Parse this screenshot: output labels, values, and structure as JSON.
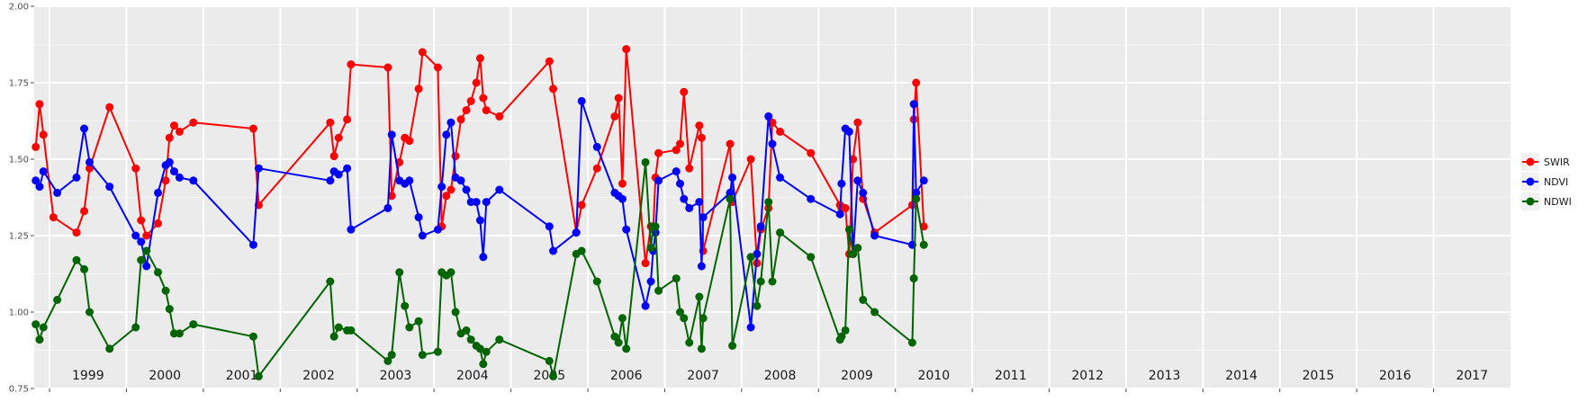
{
  "chart_data": {
    "type": "line",
    "title": "",
    "xlabel": "",
    "ylabel": "",
    "ylim": [
      0.75,
      2.0
    ],
    "y_ticks": [
      "0.75",
      "1.00",
      "1.25",
      "1.50",
      "1.75",
      "2.00"
    ],
    "x_range": [
      1998.8,
      2018.0
    ],
    "grid": true,
    "background": "#ebebeb",
    "legend_position": "right",
    "year_labels": [
      "1999",
      "2000",
      "2001",
      "2002",
      "2003",
      "2004",
      "2005",
      "2006",
      "2007",
      "2008",
      "2009",
      "2010",
      "2011",
      "2012",
      "2013",
      "2014",
      "2015",
      "2016",
      "2017"
    ],
    "series": [
      {
        "name": "SWIR",
        "color": "#ff0000",
        "x": [
          1998.82,
          1998.87,
          1998.92,
          1999.05,
          1999.35,
          1999.45,
          1999.52,
          1999.78,
          2000.12,
          2000.19,
          2000.26,
          2000.41,
          2000.51,
          2000.56,
          2000.62,
          2000.69,
          2000.87,
          2001.65,
          2001.72,
          2002.65,
          2002.7,
          2002.76,
          2002.87,
          2002.92,
          2003.4,
          2003.45,
          2003.55,
          2003.62,
          2003.68,
          2003.8,
          2003.85,
          2004.05,
          2004.1,
          2004.16,
          2004.22,
          2004.28,
          2004.35,
          2004.42,
          2004.48,
          2004.55,
          2004.6,
          2004.64,
          2004.68,
          2004.85,
          2005.5,
          2005.55,
          2005.85,
          2005.92,
          2006.12,
          2006.35,
          2006.4,
          2006.45,
          2006.5,
          2006.75,
          2006.82,
          2006.85,
          2006.88,
          2006.92,
          2007.15,
          2007.2,
          2007.25,
          2007.32,
          2007.45,
          2007.48,
          2007.5,
          2007.85,
          2007.88,
          2008.12,
          2008.2,
          2008.25,
          2008.35,
          2008.4,
          2008.5,
          2008.9,
          2009.28,
          2009.3,
          2009.35,
          2009.4,
          2009.45,
          2009.51,
          2009.58,
          2009.73,
          2010.22,
          2010.24,
          2010.27,
          2010.37
        ],
        "y": [
          1.54,
          1.68,
          1.58,
          1.31,
          1.26,
          1.33,
          1.47,
          1.67,
          1.47,
          1.3,
          1.25,
          1.29,
          1.43,
          1.57,
          1.61,
          1.59,
          1.62,
          1.6,
          1.35,
          1.62,
          1.51,
          1.57,
          1.63,
          1.81,
          1.8,
          1.38,
          1.49,
          1.57,
          1.56,
          1.73,
          1.85,
          1.8,
          1.28,
          1.38,
          1.4,
          1.51,
          1.63,
          1.66,
          1.69,
          1.75,
          1.83,
          1.7,
          1.66,
          1.64,
          1.82,
          1.73,
          1.26,
          1.35,
          1.47,
          1.64,
          1.7,
          1.42,
          1.86,
          1.16,
          1.28,
          1.27,
          1.44,
          1.52,
          1.53,
          1.55,
          1.72,
          1.47,
          1.61,
          1.57,
          1.2,
          1.55,
          1.36,
          1.5,
          1.16,
          1.27,
          1.34,
          1.62,
          1.59,
          1.52,
          1.35,
          1.34,
          1.34,
          1.19,
          1.5,
          1.62,
          1.37,
          1.26,
          1.35,
          1.63,
          1.75,
          1.28
        ],
        "_unused": []
      },
      {
        "name": "NDVI",
        "color": "#0000ff",
        "x": [
          1998.82,
          1998.87,
          1998.92,
          1999.1,
          1999.35,
          1999.45,
          1999.52,
          1999.78,
          2000.12,
          2000.19,
          2000.26,
          2000.41,
          2000.51,
          2000.56,
          2000.62,
          2000.69,
          2000.87,
          2001.65,
          2001.72,
          2002.65,
          2002.7,
          2002.76,
          2002.87,
          2002.92,
          2003.4,
          2003.45,
          2003.55,
          2003.62,
          2003.68,
          2003.8,
          2003.85,
          2004.05,
          2004.1,
          2004.16,
          2004.22,
          2004.28,
          2004.35,
          2004.42,
          2004.48,
          2004.55,
          2004.6,
          2004.64,
          2004.68,
          2004.85,
          2005.5,
          2005.55,
          2005.85,
          2005.92,
          2006.12,
          2006.35,
          2006.4,
          2006.45,
          2006.5,
          2006.75,
          2006.82,
          2006.85,
          2006.88,
          2006.92,
          2007.15,
          2007.2,
          2007.25,
          2007.32,
          2007.45,
          2007.48,
          2007.5,
          2007.85,
          2007.88,
          2008.12,
          2008.2,
          2008.25,
          2008.35,
          2008.4,
          2008.5,
          2008.9,
          2009.28,
          2009.3,
          2009.35,
          2009.4,
          2009.45,
          2009.51,
          2009.58,
          2009.73,
          2010.22,
          2010.24,
          2010.27,
          2010.37
        ],
        "y": [
          1.43,
          1.41,
          1.46,
          1.39,
          1.44,
          1.6,
          1.49,
          1.41,
          1.25,
          1.23,
          1.15,
          1.39,
          1.48,
          1.49,
          1.46,
          1.44,
          1.43,
          1.22,
          1.47,
          1.43,
          1.46,
          1.45,
          1.47,
          1.27,
          1.34,
          1.58,
          1.43,
          1.42,
          1.43,
          1.31,
          1.25,
          1.27,
          1.41,
          1.58,
          1.62,
          1.44,
          1.43,
          1.4,
          1.36,
          1.36,
          1.3,
          1.18,
          1.36,
          1.4,
          1.28,
          1.2,
          1.26,
          1.69,
          1.54,
          1.39,
          1.38,
          1.37,
          1.27,
          1.02,
          1.1,
          1.2,
          1.26,
          1.43,
          1.46,
          1.42,
          1.37,
          1.34,
          1.36,
          1.15,
          1.31,
          1.39,
          1.44,
          0.95,
          1.19,
          1.28,
          1.64,
          1.55,
          1.44,
          1.37,
          1.32,
          1.42,
          1.6,
          1.59,
          1.19,
          1.43,
          1.39,
          1.25,
          1.22,
          1.68,
          1.39,
          1.43
        ],
        "_unused": []
      },
      {
        "name": "NDWI",
        "color": "#006400",
        "x": [
          1998.82,
          1998.87,
          1998.92,
          1999.1,
          1999.35,
          1999.45,
          1999.52,
          1999.78,
          2000.12,
          2000.19,
          2000.26,
          2000.41,
          2000.51,
          2000.56,
          2000.62,
          2000.69,
          2000.87,
          2001.65,
          2001.72,
          2002.65,
          2002.7,
          2002.76,
          2002.87,
          2002.92,
          2003.4,
          2003.45,
          2003.55,
          2003.62,
          2003.68,
          2003.8,
          2003.85,
          2004.05,
          2004.1,
          2004.16,
          2004.22,
          2004.28,
          2004.35,
          2004.42,
          2004.48,
          2004.55,
          2004.6,
          2004.64,
          2004.68,
          2004.85,
          2005.5,
          2005.55,
          2005.85,
          2005.92,
          2006.12,
          2006.35,
          2006.4,
          2006.45,
          2006.5,
          2006.75,
          2006.82,
          2006.85,
          2006.88,
          2006.92,
          2007.15,
          2007.2,
          2007.25,
          2007.32,
          2007.45,
          2007.48,
          2007.5,
          2007.85,
          2007.88,
          2008.12,
          2008.2,
          2008.25,
          2008.35,
          2008.4,
          2008.5,
          2008.9,
          2009.28,
          2009.3,
          2009.35,
          2009.4,
          2009.45,
          2009.51,
          2009.58,
          2009.73,
          2010.22,
          2010.24,
          2010.27,
          2010.37
        ],
        "y": [
          0.96,
          0.91,
          0.95,
          1.04,
          1.17,
          1.14,
          1.0,
          0.88,
          0.95,
          1.17,
          1.2,
          1.13,
          1.07,
          1.01,
          0.93,
          0.93,
          0.96,
          0.92,
          0.79,
          1.1,
          0.92,
          0.95,
          0.94,
          0.94,
          0.84,
          0.86,
          1.13,
          1.02,
          0.95,
          0.97,
          0.86,
          0.87,
          1.13,
          1.12,
          1.13,
          1.0,
          0.93,
          0.94,
          0.91,
          0.89,
          0.88,
          0.83,
          0.87,
          0.91,
          0.84,
          0.79,
          1.19,
          1.2,
          1.1,
          0.92,
          0.9,
          0.98,
          0.88,
          1.49,
          1.21,
          1.28,
          1.28,
          1.07,
          1.11,
          1.0,
          0.98,
          0.9,
          1.05,
          0.88,
          0.98,
          1.37,
          0.89,
          1.18,
          1.02,
          1.1,
          1.36,
          1.1,
          1.26,
          1.18,
          0.91,
          0.92,
          0.94,
          1.27,
          1.19,
          1.21,
          1.04,
          1.0,
          0.9,
          1.11,
          1.37,
          1.22
        ],
        "_unused": []
      }
    ]
  }
}
